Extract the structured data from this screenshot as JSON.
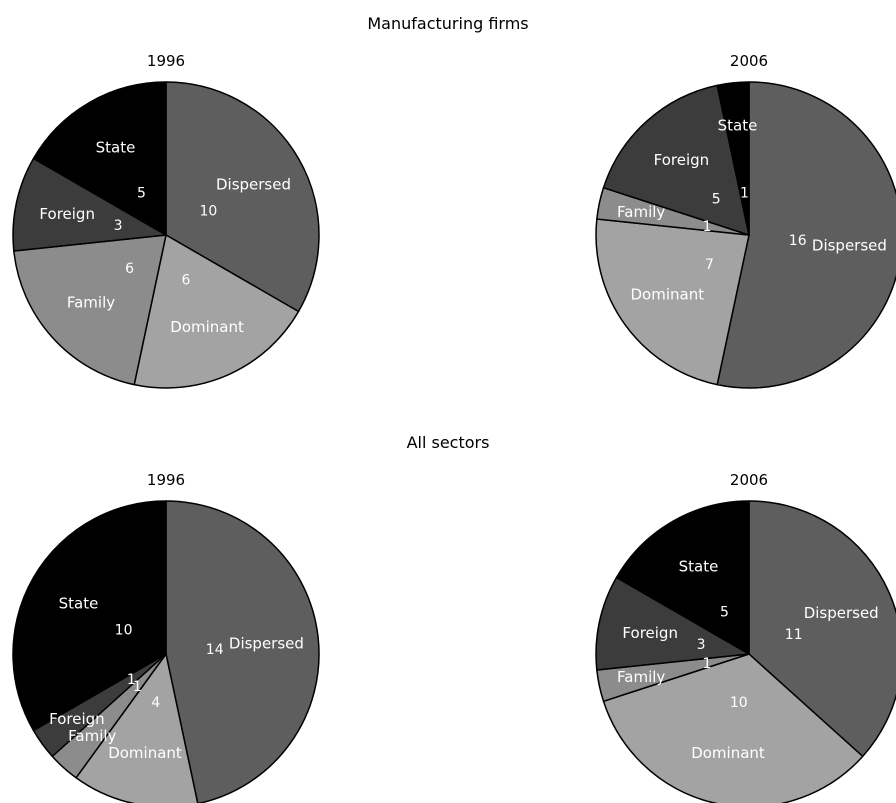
{
  "colors": {
    "Dispersed": "#5e5e5e",
    "Dominant": "#a3a3a3",
    "Family": "#8c8c8c",
    "Foreign": "#3c3c3c",
    "State": "#000000",
    "outline": "#000000",
    "text_on_slice": "#ffffff"
  },
  "sections": [
    {
      "title": "Manufacturing firms"
    },
    {
      "title": "All sectors"
    }
  ],
  "chart_data": [
    {
      "type": "pie",
      "section": "Manufacturing firms",
      "title": "1996",
      "slices": [
        {
          "label": "Dispersed",
          "value": 10
        },
        {
          "label": "Dominant",
          "value": 6
        },
        {
          "label": "Family",
          "value": 6
        },
        {
          "label": "Foreign",
          "value": 3
        },
        {
          "label": "State",
          "value": 5
        }
      ]
    },
    {
      "type": "pie",
      "section": "Manufacturing firms",
      "title": "2006",
      "slices": [
        {
          "label": "Dispersed",
          "value": 16
        },
        {
          "label": "Dominant",
          "value": 7
        },
        {
          "label": "Family",
          "value": 1
        },
        {
          "label": "Foreign",
          "value": 5
        },
        {
          "label": "State",
          "value": 1
        }
      ]
    },
    {
      "type": "pie",
      "section": "All sectors",
      "title": "1996",
      "slices": [
        {
          "label": "Dispersed",
          "value": 14
        },
        {
          "label": "Dominant",
          "value": 4
        },
        {
          "label": "Family",
          "value": 1
        },
        {
          "label": "Foreign",
          "value": 1
        },
        {
          "label": "State",
          "value": 10
        }
      ]
    },
    {
      "type": "pie",
      "section": "All sectors",
      "title": "2006",
      "slices": [
        {
          "label": "Dispersed",
          "value": 11
        },
        {
          "label": "Dominant",
          "value": 10
        },
        {
          "label": "Family",
          "value": 1
        },
        {
          "label": "Foreign",
          "value": 3
        },
        {
          "label": "State",
          "value": 5
        }
      ]
    }
  ]
}
